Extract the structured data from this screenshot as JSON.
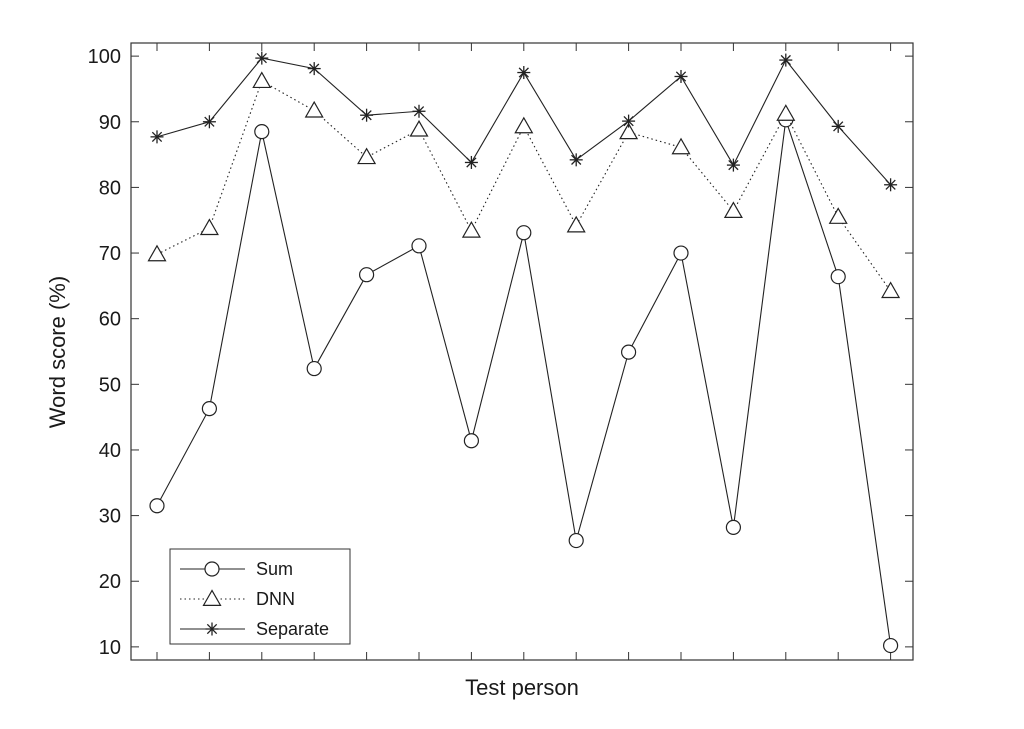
{
  "chart_data": {
    "type": "line",
    "title": "",
    "xlabel": "Test person",
    "ylabel": "Word score (%)",
    "x": [
      1,
      2,
      3,
      4,
      5,
      6,
      7,
      8,
      9,
      10,
      11,
      12,
      13,
      14,
      15
    ],
    "ylim": [
      8,
      102
    ],
    "yticks": [
      10,
      20,
      30,
      40,
      50,
      60,
      70,
      80,
      90,
      100
    ],
    "grid": false,
    "legend_position": "bottom-left",
    "series": [
      {
        "name": "Sum",
        "line": "solid",
        "marker": "circle",
        "values": [
          31.5,
          46.3,
          88.5,
          52.4,
          66.7,
          71.1,
          41.4,
          73.1,
          26.2,
          54.9,
          70.0,
          28.2,
          90.3,
          66.4,
          10.2
        ]
      },
      {
        "name": "DNN",
        "line": "dotted",
        "marker": "triangle",
        "values": [
          69.8,
          73.8,
          96.2,
          91.7,
          84.6,
          88.8,
          73.4,
          89.3,
          74.2,
          88.4,
          86.1,
          76.4,
          91.2,
          75.5,
          64.2
        ]
      },
      {
        "name": "Separate",
        "line": "solid",
        "marker": "asterisk",
        "values": [
          87.7,
          90.0,
          99.7,
          98.1,
          91.0,
          91.6,
          83.8,
          97.5,
          84.2,
          90.1,
          96.9,
          83.4,
          99.4,
          89.3,
          80.4
        ]
      }
    ]
  }
}
